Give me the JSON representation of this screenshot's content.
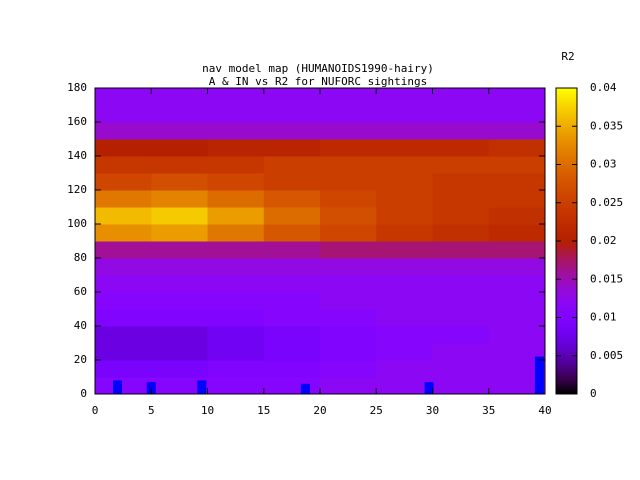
{
  "chart_data": {
    "type": "heatmap",
    "title": "nav model map (HUMANOIDS1990-hairy)",
    "subtitle": "A & IN vs R2 for NUFORC sightings",
    "colorbar_label": "R2",
    "xlim": [
      0,
      40
    ],
    "xticks": [
      0,
      5,
      10,
      15,
      20,
      25,
      30,
      35,
      40
    ],
    "ylim": [
      0,
      180
    ],
    "yticks": [
      0,
      20,
      40,
      60,
      80,
      100,
      120,
      140,
      160,
      180
    ],
    "cblim": [
      0,
      0.04
    ],
    "cbticks": [
      0,
      0.005,
      0.01,
      0.015,
      0.02,
      0.025,
      0.03,
      0.035,
      0.04
    ],
    "x": [
      2.5,
      7.5,
      12.5,
      17.5,
      22.5,
      27.5,
      32.5,
      37.5
    ],
    "y": [
      5,
      15,
      25,
      35,
      45,
      55,
      65,
      75,
      85,
      95,
      105,
      115,
      125,
      135,
      145,
      155,
      165,
      175
    ],
    "z": [
      [
        0.011,
        0.011,
        0.011,
        0.011,
        0.012,
        0.012,
        0.012,
        0.012
      ],
      [
        0.009,
        0.009,
        0.01,
        0.01,
        0.011,
        0.012,
        0.012,
        0.012
      ],
      [
        0.007,
        0.007,
        0.008,
        0.009,
        0.01,
        0.011,
        0.012,
        0.012
      ],
      [
        0.007,
        0.007,
        0.008,
        0.009,
        0.01,
        0.011,
        0.011,
        0.012
      ],
      [
        0.01,
        0.01,
        0.01,
        0.011,
        0.011,
        0.012,
        0.012,
        0.012
      ],
      [
        0.011,
        0.011,
        0.011,
        0.011,
        0.012,
        0.012,
        0.012,
        0.012
      ],
      [
        0.012,
        0.012,
        0.012,
        0.012,
        0.012,
        0.012,
        0.012,
        0.012
      ],
      [
        0.013,
        0.013,
        0.013,
        0.013,
        0.013,
        0.013,
        0.013,
        0.013
      ],
      [
        0.016,
        0.016,
        0.016,
        0.016,
        0.017,
        0.017,
        0.017,
        0.017
      ],
      [
        0.033,
        0.034,
        0.031,
        0.028,
        0.026,
        0.024,
        0.023,
        0.022
      ],
      [
        0.036,
        0.037,
        0.034,
        0.03,
        0.027,
        0.025,
        0.024,
        0.023
      ],
      [
        0.031,
        0.032,
        0.03,
        0.028,
        0.026,
        0.025,
        0.024,
        0.024
      ],
      [
        0.026,
        0.027,
        0.026,
        0.025,
        0.025,
        0.025,
        0.024,
        0.024
      ],
      [
        0.024,
        0.024,
        0.024,
        0.025,
        0.025,
        0.025,
        0.025,
        0.025
      ],
      [
        0.02,
        0.02,
        0.021,
        0.021,
        0.022,
        0.022,
        0.022,
        0.023
      ],
      [
        0.014,
        0.014,
        0.014,
        0.014,
        0.014,
        0.014,
        0.014,
        0.014
      ],
      [
        0.012,
        0.012,
        0.012,
        0.012,
        0.012,
        0.012,
        0.012,
        0.012
      ],
      [
        0.012,
        0.012,
        0.012,
        0.012,
        0.012,
        0.012,
        0.012,
        0.012
      ]
    ],
    "bars": {
      "x": [
        2,
        5,
        9.5,
        18.7,
        29.7,
        39.5
      ],
      "values": [
        8,
        7,
        8,
        6,
        7,
        22
      ],
      "color": "#0000ff"
    }
  }
}
